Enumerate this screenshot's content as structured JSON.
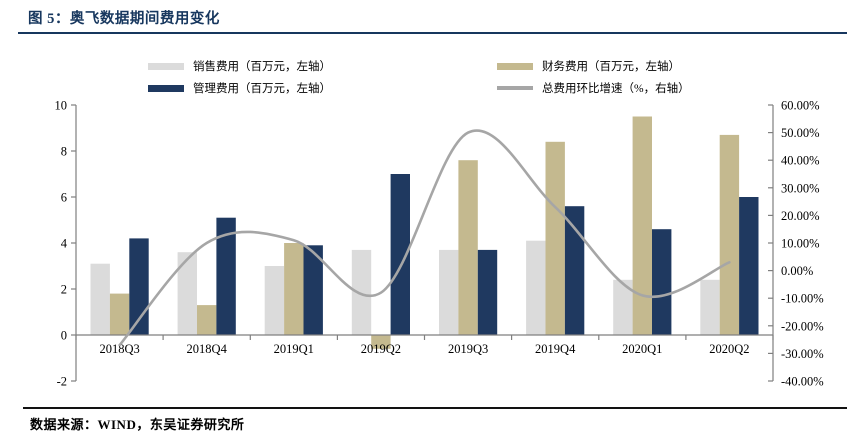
{
  "header": {
    "title": "图 5：奥飞数据期间费用变化"
  },
  "footer": {
    "source": "数据来源：WIND，东吴证券研究所"
  },
  "colors": {
    "title_navy": "#17375E",
    "top_divider": "#17375E",
    "bottom_divider": "#121212",
    "sales_bar": "#DBDBDB",
    "financial_bar": "#C4B98F",
    "management_bar": "#1F3960",
    "trend_line": "#A6A6A6",
    "axis": "#7F7F7F",
    "text": "#000000"
  },
  "legend": {
    "items": [
      {
        "label": "销售费用（百万元，左轴）",
        "swatch": "bar",
        "color": "#DBDBDB"
      },
      {
        "label": "管理费用（百万元，左轴）",
        "swatch": "bar",
        "color": "#1F3960"
      },
      {
        "label": "财务费用（百万元，左轴）",
        "swatch": "bar",
        "color": "#C4B98F"
      },
      {
        "label": "总费用环比增速（%，右轴）",
        "swatch": "line",
        "color": "#A6A6A6"
      }
    ]
  },
  "chart_data": {
    "type": "bar",
    "subtype": "grouped-bars-with-smoothed-line-dual-axis",
    "title": "奥飞数据期间费用变化",
    "categories": [
      "2018Q3",
      "2018Q4",
      "2019Q1",
      "2019Q2",
      "2019Q3",
      "2019Q4",
      "2020Q1",
      "2020Q2"
    ],
    "series": [
      {
        "name": "销售费用（百万元，左轴）",
        "type": "bar",
        "axis": "left",
        "color": "#DBDBDB",
        "values": [
          3.1,
          3.6,
          3.0,
          3.7,
          3.7,
          4.1,
          2.4,
          2.4
        ]
      },
      {
        "name": "财务费用（百万元，左轴）",
        "type": "bar",
        "axis": "left",
        "color": "#C4B98F",
        "values": [
          1.8,
          1.3,
          4.0,
          -0.6,
          7.6,
          8.4,
          9.5,
          8.7
        ]
      },
      {
        "name": "管理费用（百万元，左轴）",
        "type": "bar",
        "axis": "left",
        "color": "#1F3960",
        "values": [
          4.2,
          5.1,
          3.9,
          7.0,
          3.7,
          5.6,
          4.6,
          6.0
        ]
      },
      {
        "name": "总费用环比增速（%，右轴）",
        "type": "line",
        "axis": "right",
        "color": "#A6A6A6",
        "values": [
          -27,
          10,
          11,
          -8,
          50,
          23,
          -9,
          3
        ]
      }
    ],
    "left_axis": {
      "min": -2,
      "max": 10,
      "ticks": [
        {
          "v": 10,
          "label": "10"
        },
        {
          "v": 8,
          "label": "8"
        },
        {
          "v": 6,
          "label": "6"
        },
        {
          "v": 4,
          "label": "4"
        },
        {
          "v": 2,
          "label": "2"
        },
        {
          "v": 0,
          "label": "0"
        },
        {
          "v": -2,
          "label": "-2"
        }
      ]
    },
    "right_axis": {
      "min": -40,
      "max": 60,
      "ticks": [
        {
          "v": 60,
          "label": "60.00%"
        },
        {
          "v": 50,
          "label": "50.00%"
        },
        {
          "v": 40,
          "label": "40.00%"
        },
        {
          "v": 30,
          "label": "30.00%"
        },
        {
          "v": 20,
          "label": "20.00%"
        },
        {
          "v": 10,
          "label": "10.00%"
        },
        {
          "v": 0,
          "label": "0.00%"
        },
        {
          "v": -10,
          "label": "-10.00%"
        },
        {
          "v": -20,
          "label": "-20.00%"
        },
        {
          "v": -30,
          "label": "-30.00%"
        },
        {
          "v": -40,
          "label": "-40.00%"
        }
      ]
    },
    "grid": false,
    "legend_position": "top"
  }
}
